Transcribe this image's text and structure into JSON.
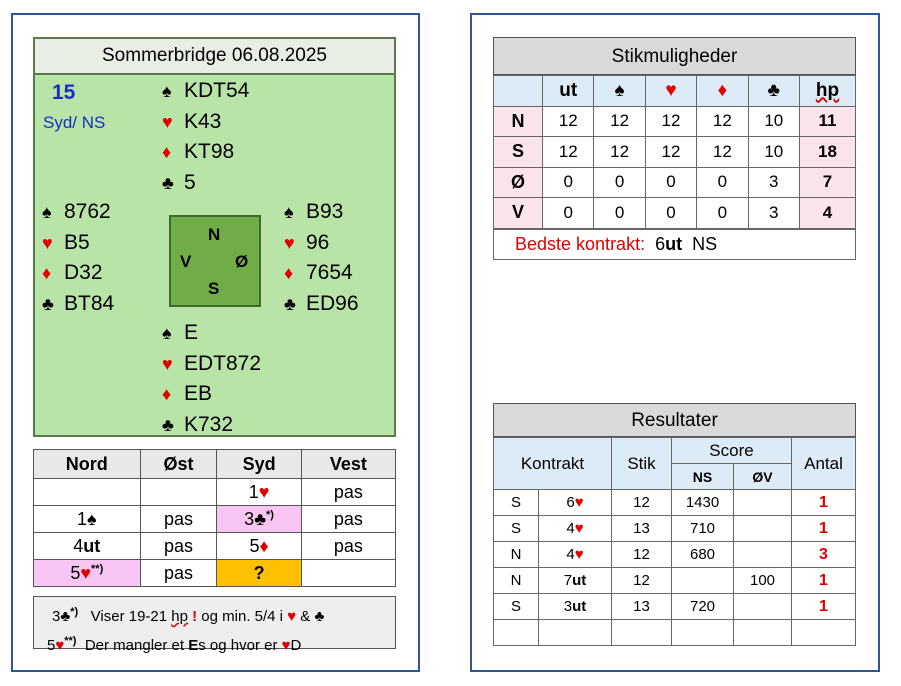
{
  "deal": {
    "title": "Sommerbridge 06.08.2025",
    "board_number": "15",
    "dealer_vul": "Syd/ NS",
    "compass": {
      "n": "N",
      "s": "S",
      "e": "Ø",
      "w": "V"
    },
    "north": {
      "spades": "KDT54",
      "hearts": "K43",
      "diamonds": "KT98",
      "clubs": "5"
    },
    "west": {
      "spades": "8762",
      "hearts": "B5",
      "diamonds": "D32",
      "clubs": "BT84"
    },
    "east": {
      "spades": "B93",
      "hearts": "96",
      "diamonds": "7654",
      "clubs": "ED96"
    },
    "south": {
      "spades": "E",
      "hearts": "EDT872",
      "diamonds": "EB",
      "clubs": "K732"
    }
  },
  "suits": {
    "spade": "♠",
    "heart": "♥",
    "diamond": "♦",
    "club": "♣"
  },
  "bidding": {
    "headers": [
      "Nord",
      "Øst",
      "Syd",
      "Vest"
    ],
    "pas": "pas",
    "ut": "ut",
    "q": "?",
    "b1": "1",
    "b3": "3",
    "b4": "4",
    "b5": "5",
    "note1": "*)",
    "note2": "**)"
  },
  "notes": {
    "line1_text": "Viser 19-21",
    "hp": "hp",
    "excl": "!",
    "line1_tail": "og min. 5/4 i",
    "amp": "&",
    "line2_a": "Der mangler et",
    "bold_E": "E",
    "line2_b": "s og hvor er",
    "line2_c": "D"
  },
  "dd": {
    "title": "Stikmuligheder",
    "headers": {
      "ut": "ut",
      "hp": "hp"
    },
    "rows": [
      {
        "seat": "N",
        "vals": [
          "12",
          "12",
          "12",
          "12",
          "10"
        ],
        "hp": "11"
      },
      {
        "seat": "S",
        "vals": [
          "12",
          "12",
          "12",
          "12",
          "10"
        ],
        "hp": "18"
      },
      {
        "seat": "Ø",
        "vals": [
          "0",
          "0",
          "0",
          "0",
          "3"
        ],
        "hp": "7"
      },
      {
        "seat": "V",
        "vals": [
          "0",
          "0",
          "0",
          "0",
          "3"
        ],
        "hp": "4"
      }
    ],
    "best_label": "Bedste kontrakt:",
    "best_level": "6",
    "best_strain": "ut",
    "best_side": "NS"
  },
  "results": {
    "title": "Resultater",
    "h_contract": "Kontrakt",
    "h_tricks": "Stik",
    "h_score": "Score",
    "h_ns": "NS",
    "h_ew": "ØV",
    "h_count": "Antal",
    "rows": [
      {
        "decl": "S",
        "level": "6",
        "tricks": "12",
        "ns": "1430",
        "ew": "",
        "count": "1"
      },
      {
        "decl": "S",
        "level": "4",
        "tricks": "13",
        "ns": "710",
        "ew": "",
        "count": "1"
      },
      {
        "decl": "N",
        "level": "4",
        "tricks": "12",
        "ns": "680",
        "ew": "",
        "count": "3"
      },
      {
        "decl": "N",
        "level": "7",
        "strain": "ut",
        "tricks": "12",
        "ns": "",
        "ew": "100",
        "count": "1"
      },
      {
        "decl": "S",
        "level": "3",
        "strain": "ut",
        "tricks": "13",
        "ns": "720",
        "ew": "",
        "count": "1"
      }
    ]
  },
  "colors": {
    "frame": "#2f5597",
    "deal_bg": "#b8e4a8",
    "red": "#e00000",
    "compass": "#70ad47"
  }
}
